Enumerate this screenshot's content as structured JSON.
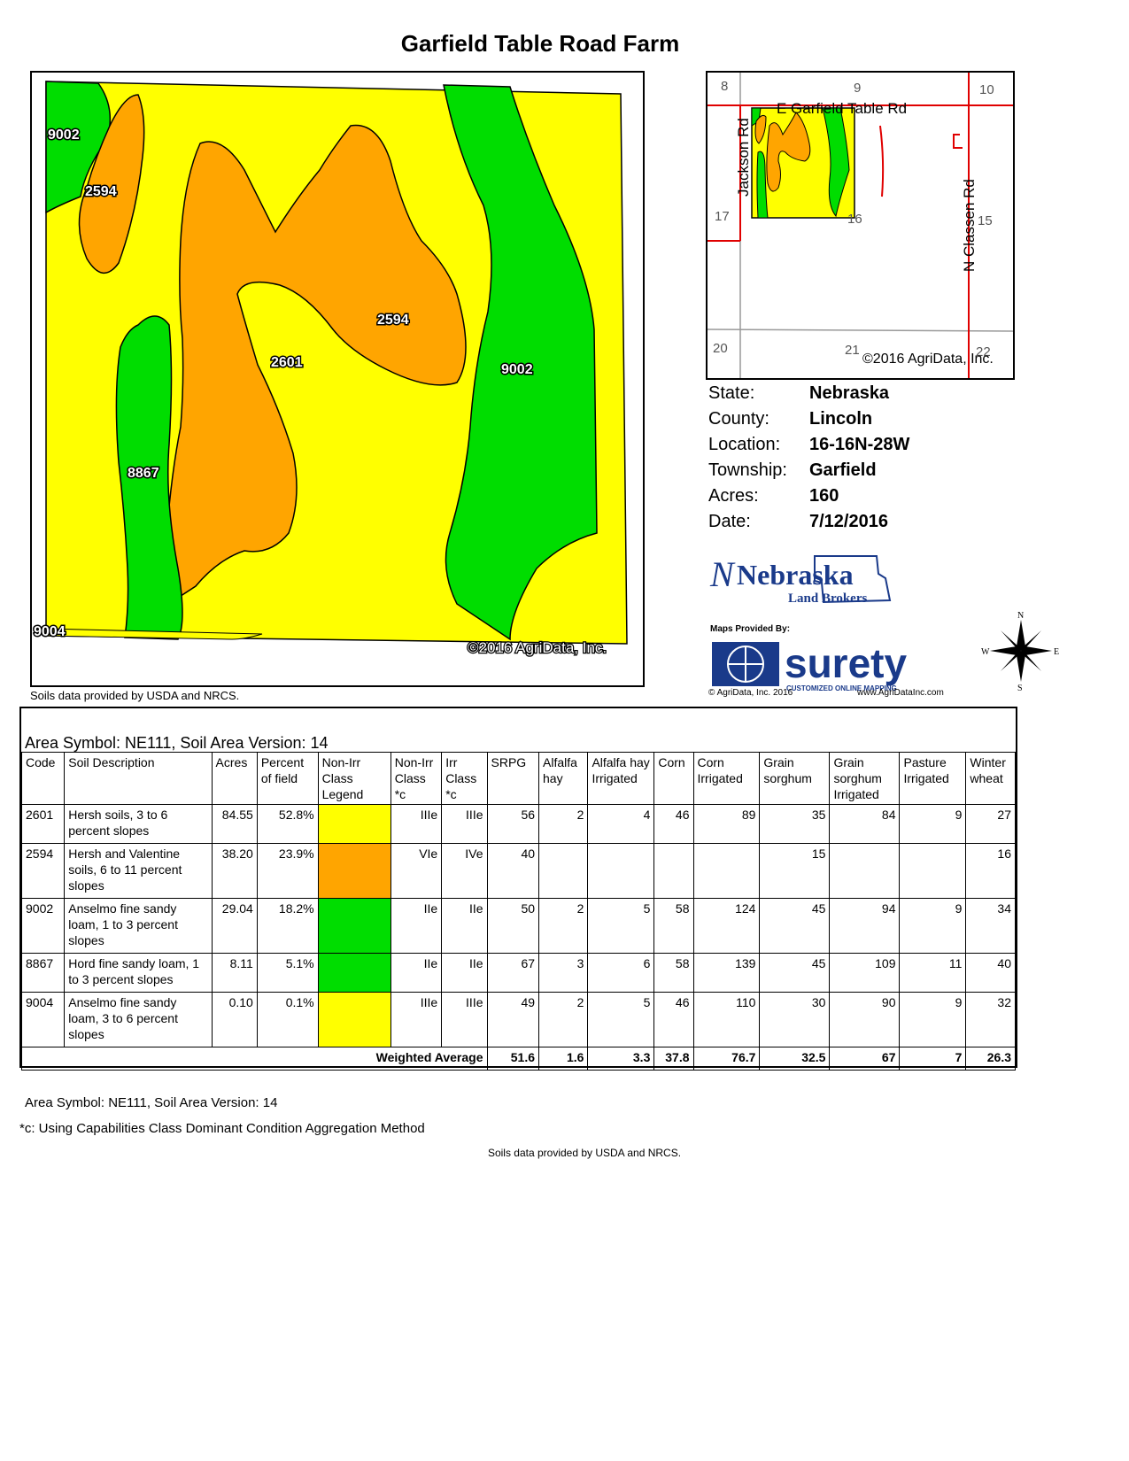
{
  "title": "Garfield Table Road Farm",
  "main_map": {
    "labels": [
      "9002",
      "2594",
      "2601",
      "2594",
      "9002",
      "8867",
      "9004"
    ],
    "copyright": "©2016 AgriData, Inc.",
    "colors": {
      "yellow": "#ffff00",
      "orange": "#ffa500",
      "green": "#00dd00"
    }
  },
  "soils_credit": "Soils data provided by USDA and NRCS.",
  "inset_map": {
    "section_labels": [
      "8",
      "9",
      "10",
      "17",
      "15",
      "16",
      "20",
      "21",
      "22"
    ],
    "roads": [
      "E Garfield Table Rd",
      "Jackson Rd",
      "N Classen Rd"
    ],
    "copyright": "©2016 AgriData, Inc."
  },
  "info": [
    {
      "label": "State:",
      "value": "Nebraska"
    },
    {
      "label": "County:",
      "value": "Lincoln"
    },
    {
      "label": "Location:",
      "value": "16-16N-28W"
    },
    {
      "label": "Township:",
      "value": "Garfield"
    },
    {
      "label": "Acres:",
      "value": "160"
    },
    {
      "label": "Date:",
      "value": "7/12/2016"
    }
  ],
  "logos": {
    "nebraska_land_brokers": {
      "line1": "Nebraska",
      "line2": "Land Brokers"
    },
    "surety": {
      "provided": "Maps Provided By:",
      "name": "surety",
      "tagline": "CUSTOMIZED ONLINE MAPPING",
      "copyright": "© AgriData, Inc. 2016",
      "url": "www.AgriDataInc.com"
    }
  },
  "compass": {
    "n": "N",
    "s": "S",
    "e": "E",
    "w": "W"
  },
  "table": {
    "area_header": "Area Symbol: NE111, Soil Area Version: 14",
    "columns": [
      "Code",
      "Soil Description",
      "Acres",
      "Percent of field",
      "Non-Irr Class Legend",
      "Non-Irr Class *c",
      "Irr Class *c",
      "SRPG",
      "Alfalfa hay",
      "Alfalfa hay Irrigated",
      "Corn",
      "Corn Irrigated",
      "Grain sorghum",
      "Grain sorghum Irrigated",
      "Pasture Irrigated",
      "Winter wheat"
    ],
    "rows": [
      {
        "code": "2601",
        "desc": "Hersh soils, 3 to 6 percent slopes",
        "acres": "84.55",
        "pct": "52.8%",
        "legend": "#ffff00",
        "nonirr": "IIIe",
        "irr": "IIIe",
        "srpg": "56",
        "alf": "2",
        "alf_irr": "4",
        "corn": "46",
        "corn_irr": "89",
        "gs": "35",
        "gs_irr": "84",
        "past": "9",
        "wheat": "27"
      },
      {
        "code": "2594",
        "desc": "Hersh and Valentine soils, 6 to 11 percent slopes",
        "acres": "38.20",
        "pct": "23.9%",
        "legend": "#ffa500",
        "nonirr": "VIe",
        "irr": "IVe",
        "srpg": "40",
        "alf": "",
        "alf_irr": "",
        "corn": "",
        "corn_irr": "",
        "gs": "15",
        "gs_irr": "",
        "past": "",
        "wheat": "16"
      },
      {
        "code": "9002",
        "desc": "Anselmo fine sandy loam, 1 to 3 percent slopes",
        "acres": "29.04",
        "pct": "18.2%",
        "legend": "#00dd00",
        "nonirr": "IIe",
        "irr": "IIe",
        "srpg": "50",
        "alf": "2",
        "alf_irr": "5",
        "corn": "58",
        "corn_irr": "124",
        "gs": "45",
        "gs_irr": "94",
        "past": "9",
        "wheat": "34"
      },
      {
        "code": "8867",
        "desc": "Hord fine sandy loam, 1 to 3 percent slopes",
        "acres": "8.11",
        "pct": "5.1%",
        "legend": "#00dd00",
        "nonirr": "IIe",
        "irr": "IIe",
        "srpg": "67",
        "alf": "3",
        "alf_irr": "6",
        "corn": "58",
        "corn_irr": "139",
        "gs": "45",
        "gs_irr": "109",
        "past": "11",
        "wheat": "40"
      },
      {
        "code": "9004",
        "desc": "Anselmo fine sandy loam, 3 to 6 percent slopes",
        "acres": "0.10",
        "pct": "0.1%",
        "legend": "#ffff00",
        "nonirr": "IIIe",
        "irr": "IIIe",
        "srpg": "49",
        "alf": "2",
        "alf_irr": "5",
        "corn": "46",
        "corn_irr": "110",
        "gs": "30",
        "gs_irr": "90",
        "past": "9",
        "wheat": "32"
      }
    ],
    "weighted": {
      "label": "Weighted Average",
      "srpg": "51.6",
      "alf": "1.6",
      "alf_irr": "3.3",
      "corn": "37.8",
      "corn_irr": "76.7",
      "gs": "32.5",
      "gs_irr": "67",
      "past": "7",
      "wheat": "26.3"
    }
  },
  "footer": {
    "area": "Area Symbol: NE111, Soil Area Version: 14",
    "note": "*c:  Using Capabilities Class Dominant Condition Aggregation Method",
    "credit": "Soils data provided by USDA and NRCS."
  }
}
